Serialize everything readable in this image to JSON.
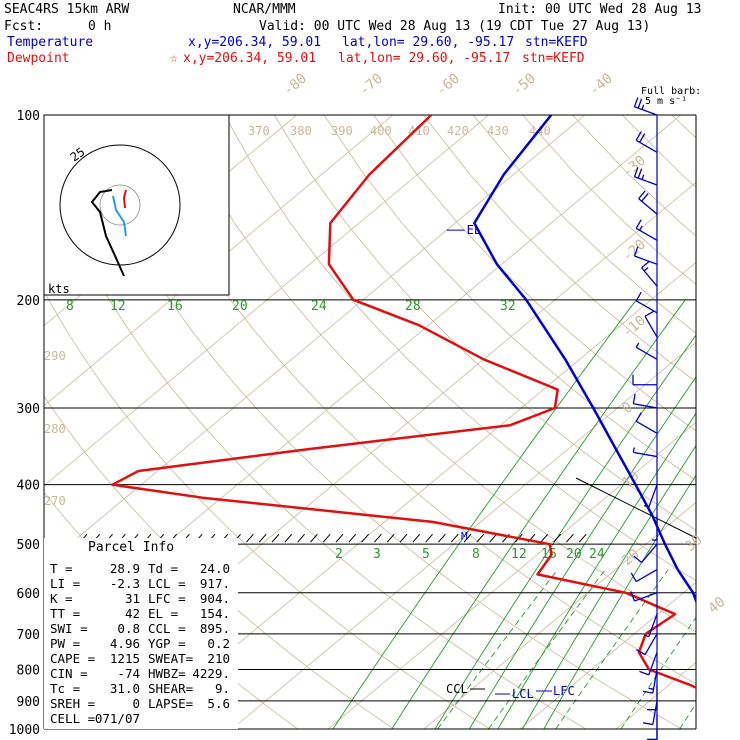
{
  "header": {
    "model": "SEAC4RS 15km ARW",
    "source": "NCAR/MMM",
    "init": "Init: 00 UTC Wed 28 Aug 13",
    "fcst_label": "Fcst:",
    "fcst_value": "0 h",
    "valid": "Valid: 00 UTC Wed 28 Aug 13 (19 CDT Tue 27 Aug 13)"
  },
  "legend": {
    "temperature": {
      "label": "Temperature",
      "xy": "x,y=206.34, 59.01",
      "latlon": "lat,lon= 29.60, -95.17",
      "stn": "stn=KEFD",
      "color": "#0000d0"
    },
    "dewpoint": {
      "label": "Dewpoint",
      "marker": "☆",
      "xy": "x,y=206.34, 59.01",
      "latlon": "lat,lon= 29.60, -95.17",
      "stn": "stn=KEFD",
      "color": "#e01010"
    }
  },
  "parcel_info": {
    "title": "Parcel Info",
    "rows": [
      [
        "T   =",
        "28.9",
        "Td =",
        "24.0"
      ],
      [
        "LI  =",
        "-2.3",
        "LCL =",
        "917."
      ],
      [
        "K   =",
        "31",
        "LFC =",
        "904."
      ],
      [
        "TT  =",
        "42",
        "EL  =",
        "154."
      ],
      [
        "SWI =",
        "0.8",
        "CCL =",
        "895."
      ],
      [
        "PW  =",
        "4.96",
        "YGP =",
        "0.2"
      ],
      [
        "CAPE =",
        "1215",
        "SWEAT=",
        "210"
      ],
      [
        "CIN  =",
        "-74",
        "HWBZ=",
        "4229."
      ],
      [
        "Tc  =",
        "31.0",
        "SHEAR=",
        "9."
      ],
      [
        "SREH =",
        "0",
        "LAPSE=",
        "5.6"
      ],
      [
        "CELL =",
        "071/07",
        "",
        ""
      ]
    ]
  },
  "hodograph": {
    "ring_label": "25",
    "units": "kts"
  },
  "barb_scale": {
    "line1": "Full barb:",
    "line2": "5 m s⁻¹"
  },
  "chart_data": {
    "type": "line",
    "title": "SEAC4RS 15km ARW",
    "pressure_labels": [
      "100",
      "200",
      "300",
      "400",
      "500",
      "600",
      "700",
      "800",
      "900",
      "1000"
    ],
    "isotherm_labels": [
      "-80",
      "-70",
      "-60",
      "-50",
      "-40",
      "-30",
      "-20",
      "-10",
      "0",
      "10",
      "20",
      "30",
      "40"
    ],
    "theta_labels": [
      "370",
      "380",
      "390",
      "400",
      "410",
      "420",
      "430",
      "440",
      "290",
      "280",
      "270"
    ],
    "mixing_ratio_upper": [
      "8",
      "12",
      "16",
      "20",
      "24",
      "28",
      "32"
    ],
    "mixing_ratio_lower": [
      "2",
      "3",
      "5",
      "8",
      "12",
      "16",
      "20",
      "24"
    ],
    "annotations": {
      "el": "EL",
      "lcl": "LCL",
      "lfc": "LFC",
      "ccl": "CCL",
      "m": "M"
    },
    "series": [
      {
        "name": "Temperature",
        "color": "#0000d0",
        "p": [
          1000,
          975,
          950,
          925,
          900,
          850,
          800,
          750,
          700,
          650,
          600,
          550,
          500,
          450,
          400,
          350,
          300,
          250,
          200,
          175,
          150,
          125,
          100
        ],
        "t": [
          28.9,
          26.8,
          24.6,
          22.4,
          21.8,
          18.7,
          15.4,
          11.5,
          8.5,
          4.5,
          1.0,
          -3.5,
          -8.0,
          -12.8,
          -18.5,
          -25.0,
          -32.5,
          -41.5,
          -53.0,
          -60.5,
          -68.0,
          -71.0,
          -73.5
        ]
      },
      {
        "name": "Dewpoint",
        "color": "#e01010",
        "p": [
          1000,
          975,
          950,
          925,
          900,
          850,
          800,
          750,
          700,
          650,
          600,
          560,
          520,
          500,
          460,
          420,
          400,
          380,
          350,
          320,
          300,
          280,
          250,
          220,
          200,
          175,
          150,
          125,
          100
        ],
        "t": [
          24.0,
          22.9,
          21.5,
          19.5,
          17.5,
          12.5,
          6.0,
          2.8,
          1.2,
          1.8,
          -6.0,
          -17.5,
          -18.5,
          -20.0,
          -35.0,
          -62.0,
          -73.0,
          -72.0,
          -57.0,
          -39.0,
          -36.5,
          -38.5,
          -50.0,
          -61.0,
          -71.0,
          -78.0,
          -83.0,
          -85.0,
          -86.0
        ]
      }
    ],
    "wind_barbs": {
      "p": [
        100,
        115,
        130,
        145,
        160,
        175,
        190,
        210,
        230,
        250,
        275,
        300,
        330,
        360,
        400,
        450,
        500,
        550,
        600,
        650,
        700,
        750,
        800,
        850,
        900,
        950,
        1000
      ],
      "speed_kt": [
        25,
        20,
        25,
        20,
        15,
        10,
        15,
        10,
        10,
        5,
        10,
        10,
        10,
        5,
        5,
        5,
        10,
        10,
        10,
        5,
        10,
        10,
        15,
        10,
        10,
        10,
        5
      ],
      "dir_deg": [
        290,
        300,
        290,
        310,
        300,
        290,
        320,
        300,
        330,
        300,
        270,
        280,
        300,
        280,
        200,
        180,
        220,
        240,
        250,
        200,
        210,
        200,
        190,
        180,
        190,
        180,
        180
      ]
    }
  }
}
